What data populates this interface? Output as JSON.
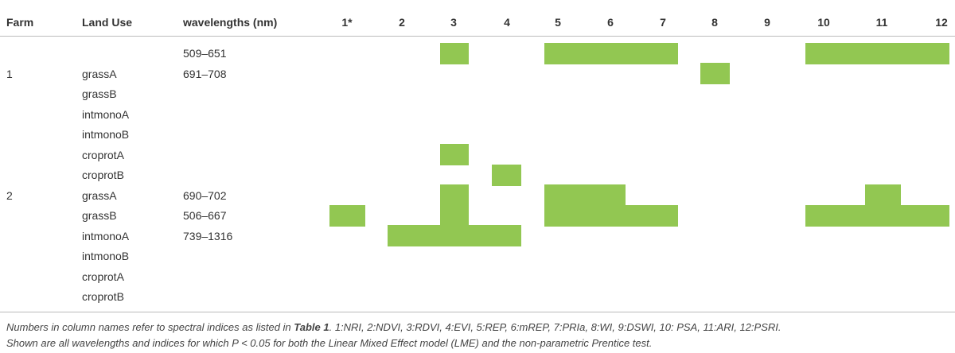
{
  "table": {
    "columns": [
      "Farm",
      "Land Use",
      "wavelengths (nm)"
    ],
    "index_columns": [
      "1*",
      "2",
      "3",
      "4",
      "5",
      "6",
      "7",
      "8",
      "9",
      "10",
      "11",
      "12"
    ],
    "rows": [
      {
        "farm": null,
        "land_use": null,
        "wavelengths": "509–651",
        "significant": [
          false,
          false,
          true,
          false,
          true,
          true,
          true,
          false,
          false,
          true,
          true,
          true
        ]
      },
      {
        "farm": "1",
        "land_use": "grassA",
        "wavelengths": "691–708",
        "significant": [
          false,
          false,
          false,
          false,
          false,
          false,
          false,
          true,
          false,
          false,
          false,
          false
        ]
      },
      {
        "farm": null,
        "land_use": "grassB",
        "wavelengths": null,
        "significant": [
          false,
          false,
          false,
          false,
          false,
          false,
          false,
          false,
          false,
          false,
          false,
          false
        ]
      },
      {
        "farm": null,
        "land_use": "intmonoA",
        "wavelengths": null,
        "significant": [
          false,
          false,
          false,
          false,
          false,
          false,
          false,
          false,
          false,
          false,
          false,
          false
        ]
      },
      {
        "farm": null,
        "land_use": "intmonoB",
        "wavelengths": null,
        "significant": [
          false,
          false,
          false,
          false,
          false,
          false,
          false,
          false,
          false,
          false,
          false,
          false
        ]
      },
      {
        "farm": null,
        "land_use": "croprotA",
        "wavelengths": null,
        "significant": [
          false,
          false,
          true,
          false,
          false,
          false,
          false,
          false,
          false,
          false,
          false,
          false
        ]
      },
      {
        "farm": null,
        "land_use": "croprotB",
        "wavelengths": null,
        "significant": [
          false,
          false,
          false,
          true,
          false,
          false,
          false,
          false,
          false,
          false,
          false,
          false
        ]
      },
      {
        "farm": "2",
        "land_use": "grassA",
        "wavelengths": "690–702",
        "significant": [
          false,
          false,
          true,
          false,
          true,
          true,
          false,
          false,
          false,
          false,
          true,
          false
        ]
      },
      {
        "farm": null,
        "land_use": "grassB",
        "wavelengths": "506–667",
        "significant": [
          true,
          false,
          true,
          false,
          true,
          true,
          true,
          false,
          false,
          true,
          true,
          true
        ]
      },
      {
        "farm": null,
        "land_use": "intmonoA",
        "wavelengths": "739–1316",
        "significant": [
          false,
          true,
          true,
          true,
          false,
          false,
          false,
          false,
          false,
          false,
          false,
          false
        ]
      },
      {
        "farm": null,
        "land_use": "intmonoB",
        "wavelengths": null,
        "significant": [
          false,
          false,
          false,
          false,
          false,
          false,
          false,
          false,
          false,
          false,
          false,
          false
        ]
      },
      {
        "farm": null,
        "land_use": "croprotA",
        "wavelengths": null,
        "significant": [
          false,
          false,
          false,
          false,
          false,
          false,
          false,
          false,
          false,
          false,
          false,
          false
        ]
      },
      {
        "farm": null,
        "land_use": "croprotB",
        "wavelengths": null,
        "significant": [
          false,
          false,
          false,
          false,
          false,
          false,
          false,
          false,
          false,
          false,
          false,
          false
        ]
      }
    ],
    "mark_color": "#92c752"
  },
  "caption": {
    "before": "Numbers in column names refer to spectral indices as listed in ",
    "ref": "Table 1",
    "after": ". 1:NRI, 2:NDVI, 3:RDVI, 4:EVI, 5:REP, 6:mREP, 7:PRIa, 8:WI, 9:DSWI, 10: PSA, 11:ARI, 12:PSRI.",
    "line2": "Shown are all wavelengths and indices for which P < 0.05 for both the Linear Mixed Effect model (LME) and the non-parametric Prentice test."
  }
}
